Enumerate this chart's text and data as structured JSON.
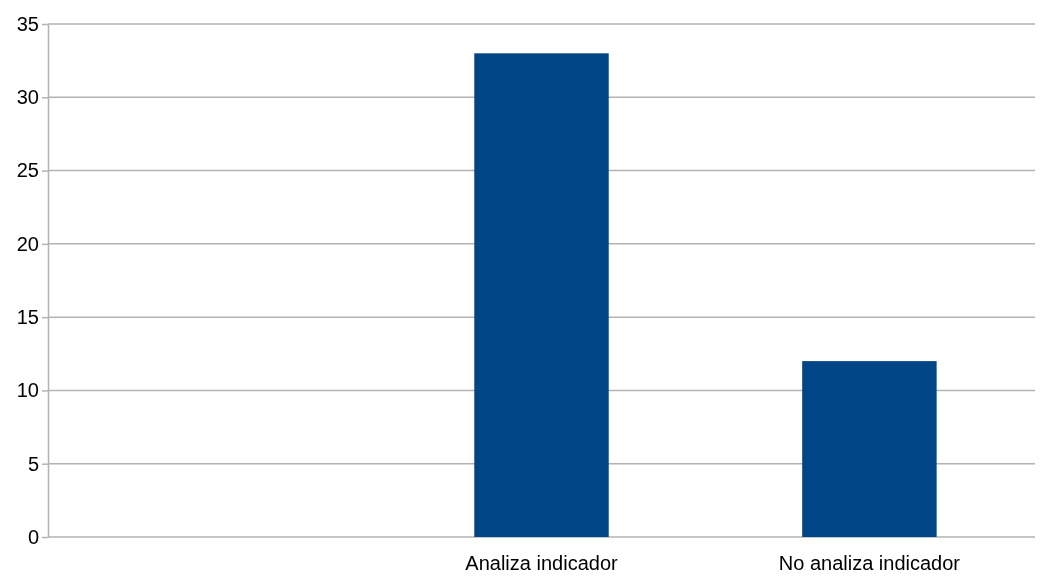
{
  "chart_data": {
    "type": "bar",
    "categories": [
      null,
      "Analiza indicador",
      "No analiza indicador"
    ],
    "values": [
      null,
      33,
      12
    ],
    "color": "#004586",
    "ylim": [
      0,
      35
    ],
    "yticks": [
      0,
      5,
      10,
      15,
      20,
      25,
      30,
      35
    ],
    "grid": "y"
  }
}
